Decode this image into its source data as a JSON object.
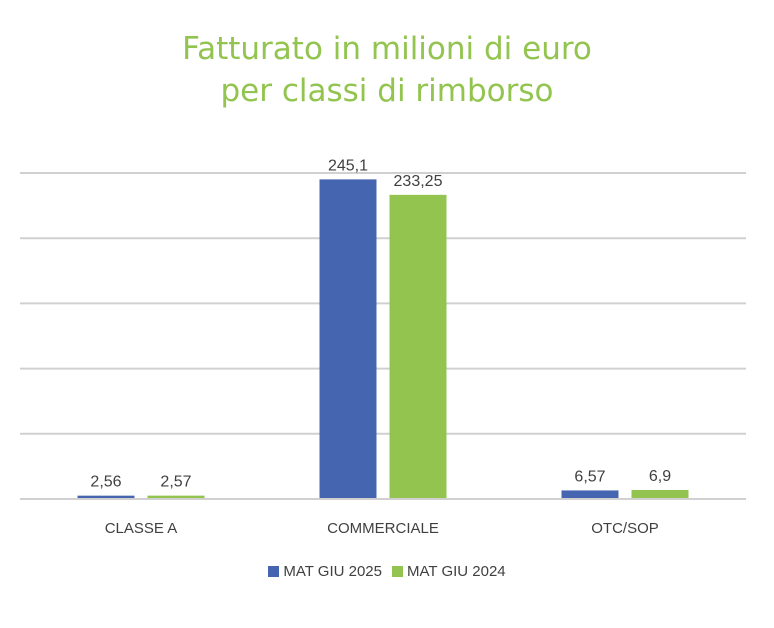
{
  "chart_data": {
    "type": "bar",
    "title_lines": [
      "Fatturato in milioni di euro",
      "per classi di rimborso"
    ],
    "categories": [
      "CLASSE A",
      "COMMERCIALE",
      "OTC/SOP"
    ],
    "series": [
      {
        "name": "MAT GIU 2025",
        "color": "#4565b0",
        "values": [
          2.56,
          245.1,
          6.57
        ],
        "labels": [
          "2,56",
          "245,1",
          "6,57"
        ]
      },
      {
        "name": "MAT GIU 2024",
        "color": "#92c44f",
        "values": [
          2.57,
          233.25,
          6.9
        ],
        "labels": [
          "2,57",
          "233,25",
          "6,9"
        ]
      }
    ],
    "ylim": [
      0,
      250
    ],
    "grid": true,
    "y_tick_labels_shown": false,
    "legend_position": "bottom",
    "gridline_color": "#d0d0d0"
  }
}
